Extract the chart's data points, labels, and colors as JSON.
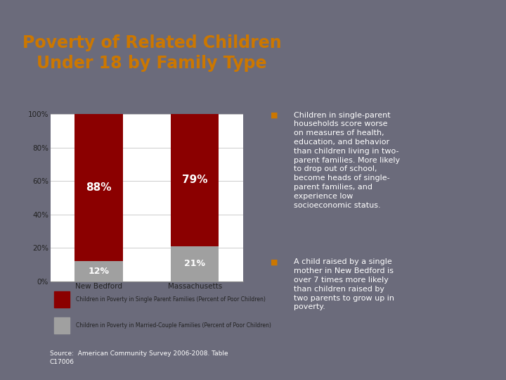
{
  "title_line1": "Poverty of Related Children",
  "title_line2": "Under 18 by Family Type",
  "title_color": "#CC7700",
  "background_color": "#6B6B7B",
  "chart_bg_color": "#FFFFFF",
  "categories": [
    "New Bedford",
    "Massachusetts"
  ],
  "single_parent": [
    88,
    79
  ],
  "married_couple": [
    12,
    21
  ],
  "bar_color_single": "#8B0000",
  "bar_color_married": "#A0A0A0",
  "bullet_color": "#CC7700",
  "text_color": "#FFFFFF",
  "dark_text": "#222222",
  "legend_single": "Children in Poverty in Single Parent Families (Percent of Poor Children)",
  "legend_married": "Children in Poverty in Married-Couple Families (Percent of Poor Children)",
  "source": "Source:  American Community Survey 2006-2008. Table\nC17006",
  "bullet1": "Children in single-parent\nhouseholds score worse\non measures of health,\neducation, and behavior\nthan children living in two-\nparent families. More likely\nto drop out of school,\nbecome heads of single-\nparent families, and\nexperience low\nsocioeconomic status.",
  "bullet2": "A child raised by a single\nmother in New Bedford is\nover 7 times more likely\nthan children raised by\ntwo parents to grow up in\npoverty."
}
